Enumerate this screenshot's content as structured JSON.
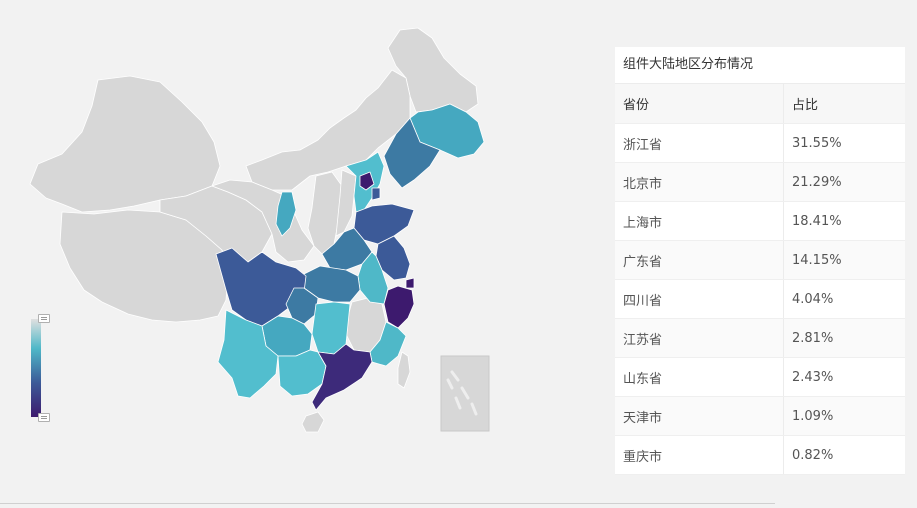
{
  "table": {
    "title": "组件大陆地区分布情况",
    "headers": [
      "省份",
      "占比"
    ],
    "rows": [
      [
        "浙江省",
        "31.55%"
      ],
      [
        "北京市",
        "21.29%"
      ],
      [
        "上海市",
        "18.41%"
      ],
      [
        "广东省",
        "14.15%"
      ],
      [
        "四川省",
        "4.04%"
      ],
      [
        "江苏省",
        "2.81%"
      ],
      [
        "山东省",
        "2.43%"
      ],
      [
        "天津市",
        "1.09%"
      ],
      [
        "重庆市",
        "0.82%"
      ]
    ]
  },
  "map": {
    "type": "choropleth",
    "region": "China mainland",
    "legend": "continuous gradient, bottom-left, vertical",
    "colors": {
      "none": "#d7d7d7",
      "low": "#4fb8c8",
      "mid": "#3d7aa3",
      "high": "#3c5a98",
      "max": "#3d1a6e",
      "border": "#ffffff"
    }
  }
}
